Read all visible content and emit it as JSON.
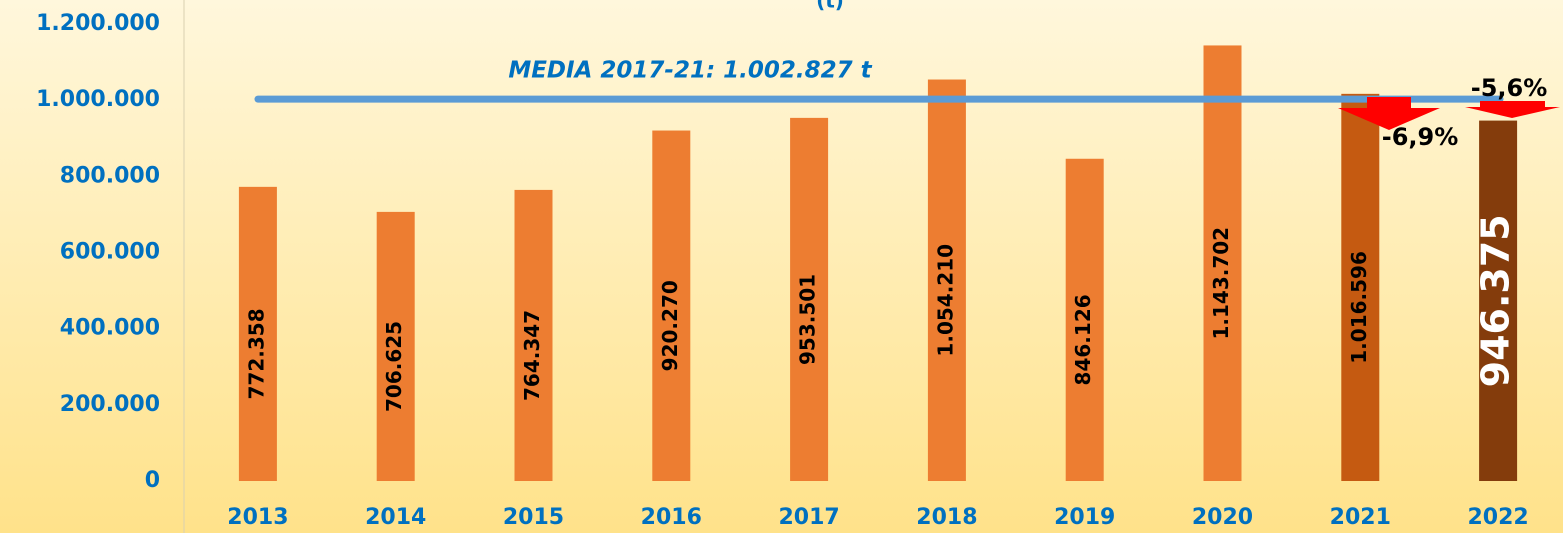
{
  "chart_data": {
    "type": "bar",
    "title": "(t)",
    "categories": [
      "2013",
      "2014",
      "2015",
      "2016",
      "2017",
      "2018",
      "2019",
      "2020",
      "2021",
      "2022"
    ],
    "values": [
      772358,
      706625,
      764347,
      920270,
      953501,
      1054210,
      846126,
      1143702,
      1016596,
      946375
    ],
    "value_labels": [
      "772.358",
      "706.625",
      "764.347",
      "920.270",
      "953.501",
      "1.054.210",
      "846.126",
      "1.143.702",
      "1.016.596",
      "946.375"
    ],
    "colors": [
      "#ED7D31",
      "#ED7D31",
      "#ED7D31",
      "#ED7D31",
      "#ED7D31",
      "#ED7D31",
      "#ED7D31",
      "#ED7D31",
      "#C55A11",
      "#843C0C"
    ],
    "ylim": [
      0,
      1200000
    ],
    "yticks": [
      0,
      {
        "value": 200000,
        "label": "200.000"
      },
      {
        "value": 400000,
        "label": "400.000"
      },
      {
        "value": 600000,
        "label": "600.000"
      },
      {
        "value": 800000,
        "label": "800.000"
      },
      {
        "value": 1000000,
        "label": "1.000.000"
      },
      {
        "value": 1200000,
        "label": "1.200.000"
      }
    ],
    "mean_line": {
      "value": 1002827,
      "label": "MEDIA 2017-21: 1.002.827 t",
      "color": "#5B9BD5"
    },
    "annotations": [
      "-6,9%",
      "-5,6%"
    ]
  }
}
